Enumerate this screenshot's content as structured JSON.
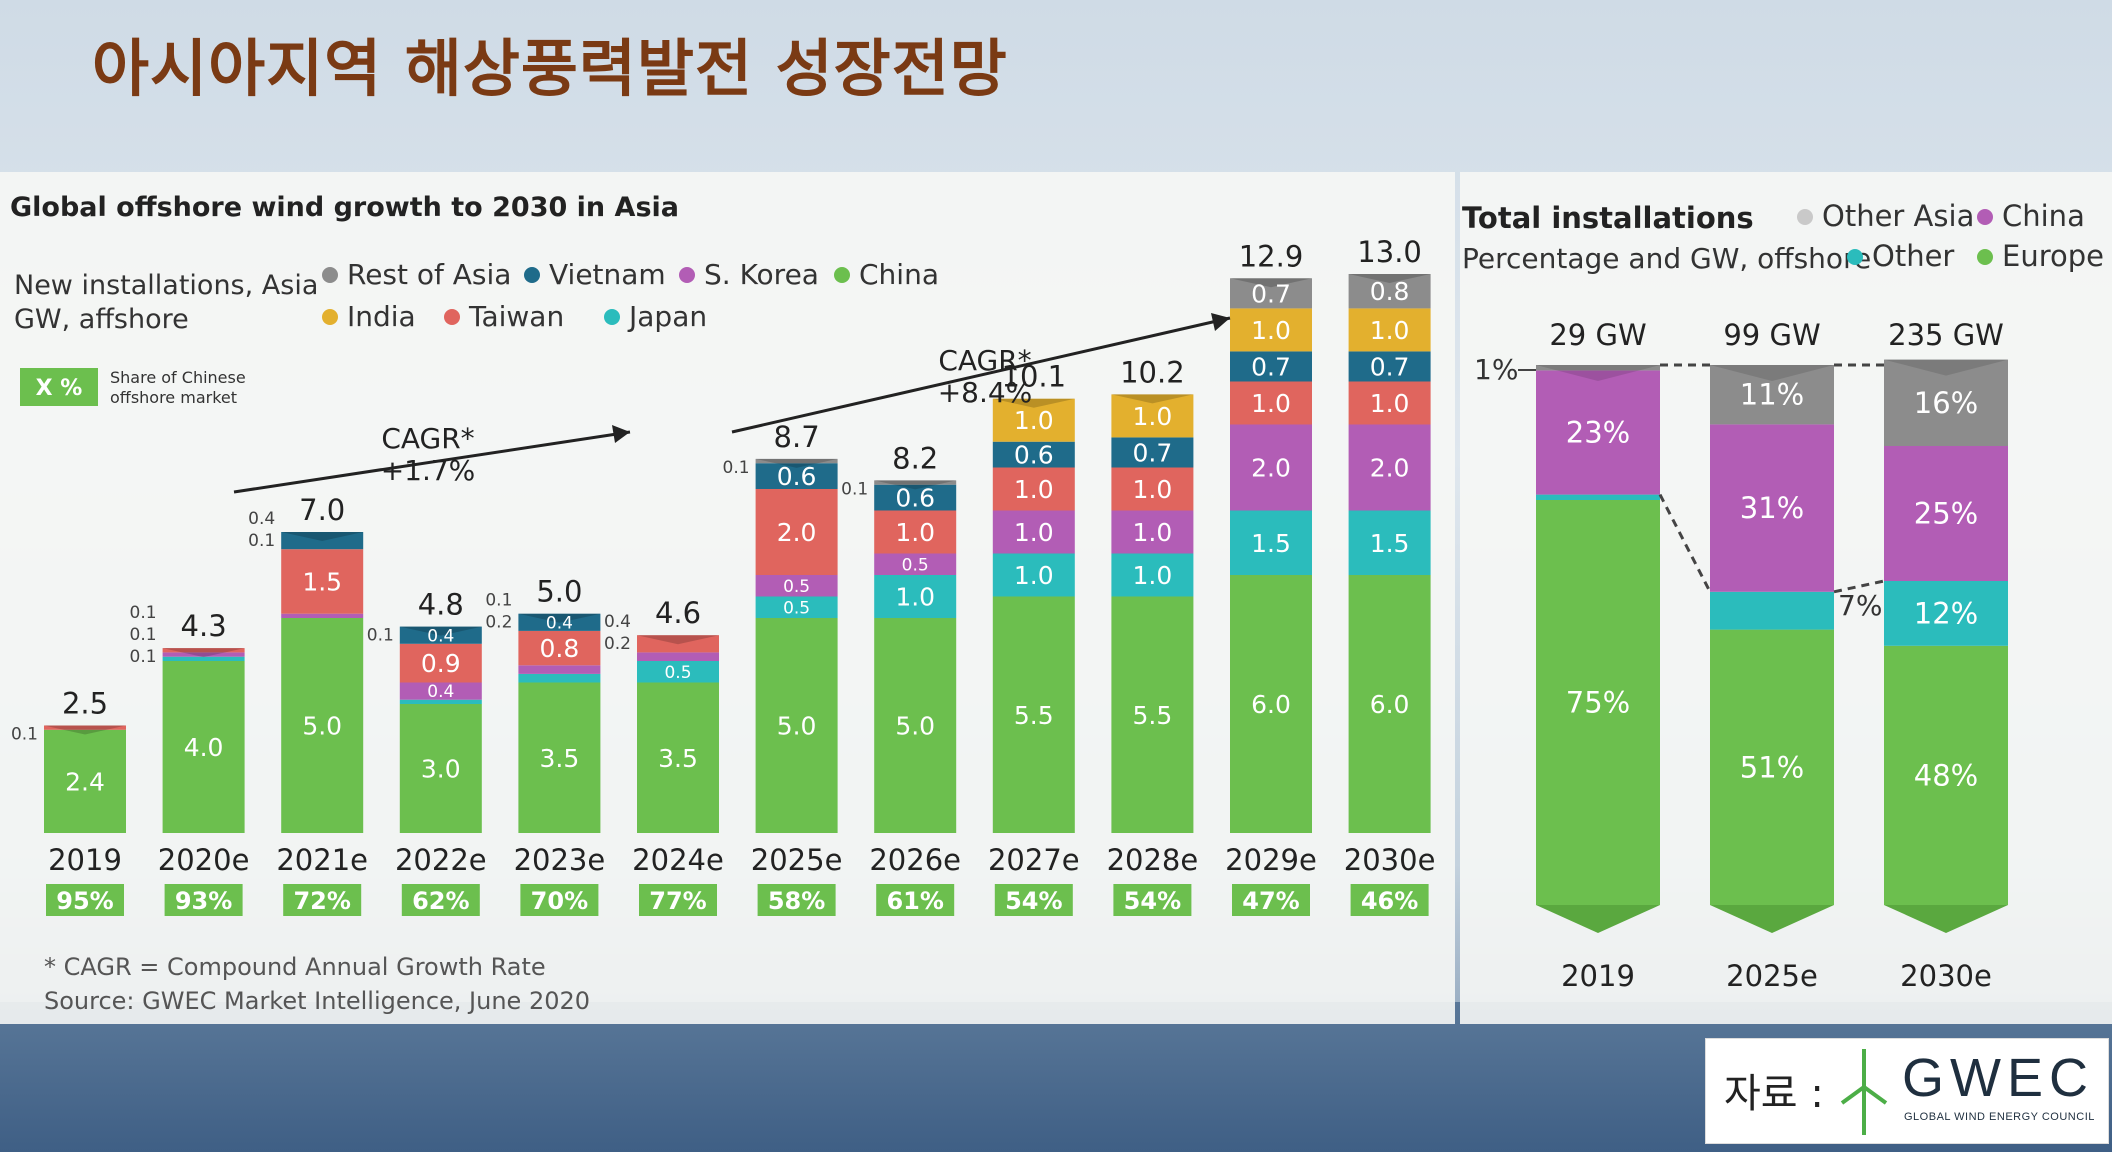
{
  "page": {
    "title": "아시아지역 해상풍력발전 성장전망",
    "source_label": "자료 :",
    "logo_name": "GWEC",
    "logo_subtitle": "GLOBAL WIND ENERGY COUNCIL"
  },
  "chart_data": [
    {
      "type": "bar",
      "stacked": true,
      "title": "Global offshore wind growth to 2030 in Asia",
      "subtitle_lines": [
        "New installations, Asia",
        "GW, affshore"
      ],
      "share_key": {
        "box": "X %",
        "lines": [
          "Share of Chinese",
          "offshore market"
        ]
      },
      "categories": [
        "2019",
        "2020e",
        "2021e",
        "2022e",
        "2023e",
        "2024e",
        "2025e",
        "2026e",
        "2027e",
        "2028e",
        "2029e",
        "2030e"
      ],
      "legend": [
        {
          "name": "Rest of Asia",
          "color": "#8c8c8c"
        },
        {
          "name": "Vietnam",
          "color": "#1f6b8a"
        },
        {
          "name": "S. Korea",
          "color": "#b25db5"
        },
        {
          "name": "China",
          "color": "#6cbf4e"
        },
        {
          "name": "India",
          "color": "#e3b02e"
        },
        {
          "name": "Taiwan",
          "color": "#e0655e"
        },
        {
          "name": "Japan",
          "color": "#2bbcbc"
        }
      ],
      "series": [
        {
          "name": "China",
          "color": "#6cbf4e",
          "values": [
            2.4,
            4.0,
            5.0,
            3.0,
            3.5,
            3.5,
            5.0,
            5.0,
            5.5,
            5.5,
            6.0,
            6.0
          ]
        },
        {
          "name": "Japan",
          "color": "#2bbcbc",
          "values": [
            0,
            0.1,
            0,
            0.1,
            0.2,
            0.5,
            0.5,
            1.0,
            1.0,
            1.0,
            1.5,
            1.5
          ]
        },
        {
          "name": "S. Korea",
          "color": "#b25db5",
          "values": [
            0,
            0.1,
            0.1,
            0.4,
            0.2,
            0.2,
            0.5,
            0.5,
            1.0,
            1.0,
            2.0,
            2.0
          ]
        },
        {
          "name": "Taiwan",
          "color": "#e0655e",
          "values": [
            0.1,
            0.1,
            1.5,
            0.9,
            0.8,
            0.4,
            2.0,
            1.0,
            1.0,
            1.0,
            1.0,
            1.0
          ]
        },
        {
          "name": "Vietnam",
          "color": "#1f6b8a",
          "values": [
            0,
            0,
            0.4,
            0.4,
            0.4,
            0,
            0.6,
            0.6,
            0.6,
            0.7,
            0.7,
            0.7
          ]
        },
        {
          "name": "India",
          "color": "#e3b02e",
          "values": [
            0,
            0,
            0,
            0,
            0,
            0,
            0,
            0,
            1.0,
            1.0,
            1.0,
            1.0
          ]
        },
        {
          "name": "Rest of Asia",
          "color": "#8c8c8c",
          "values": [
            0,
            0,
            0,
            0,
            0,
            0,
            0.1,
            0.1,
            0,
            0,
            0.7,
            0.8
          ]
        }
      ],
      "labels": [
        {
          "cat": 0,
          "series": "China",
          "text": "2.4"
        },
        {
          "cat": 1,
          "series": "China",
          "text": "4.0"
        },
        {
          "cat": 2,
          "series": "China",
          "text": "5.0"
        },
        {
          "cat": 2,
          "series": "Taiwan",
          "text": "1.5"
        },
        {
          "cat": 3,
          "series": "China",
          "text": "3.0"
        },
        {
          "cat": 3,
          "series": "S. Korea",
          "text": "0.4"
        },
        {
          "cat": 3,
          "series": "Taiwan",
          "text": "0.9"
        },
        {
          "cat": 3,
          "series": "Vietnam",
          "text": "0.4"
        },
        {
          "cat": 4,
          "series": "China",
          "text": "3.5"
        },
        {
          "cat": 4,
          "series": "Taiwan",
          "text": "0.8"
        },
        {
          "cat": 4,
          "series": "Vietnam",
          "text": "0.4"
        },
        {
          "cat": 5,
          "series": "China",
          "text": "3.5"
        },
        {
          "cat": 5,
          "series": "Japan",
          "text": "0.5"
        },
        {
          "cat": 6,
          "series": "China",
          "text": "5.0"
        },
        {
          "cat": 6,
          "series": "Japan",
          "text": "0.5"
        },
        {
          "cat": 6,
          "series": "S. Korea",
          "text": "0.5"
        },
        {
          "cat": 6,
          "series": "Taiwan",
          "text": "2.0"
        },
        {
          "cat": 6,
          "series": "Vietnam",
          "text": "0.6"
        },
        {
          "cat": 7,
          "series": "China",
          "text": "5.0"
        },
        {
          "cat": 7,
          "series": "Japan",
          "text": "1.0"
        },
        {
          "cat": 7,
          "series": "S. Korea",
          "text": "0.5"
        },
        {
          "cat": 7,
          "series": "Taiwan",
          "text": "1.0"
        },
        {
          "cat": 7,
          "series": "Vietnam",
          "text": "0.6"
        },
        {
          "cat": 8,
          "series": "China",
          "text": "5.5"
        },
        {
          "cat": 8,
          "series": "Japan",
          "text": "1.0"
        },
        {
          "cat": 8,
          "series": "S. Korea",
          "text": "1.0"
        },
        {
          "cat": 8,
          "series": "Taiwan",
          "text": "1.0"
        },
        {
          "cat": 8,
          "series": "Vietnam",
          "text": "0.6"
        },
        {
          "cat": 8,
          "series": "India",
          "text": "1.0"
        },
        {
          "cat": 9,
          "series": "China",
          "text": "5.5"
        },
        {
          "cat": 9,
          "series": "Japan",
          "text": "1.0"
        },
        {
          "cat": 9,
          "series": "S. Korea",
          "text": "1.0"
        },
        {
          "cat": 9,
          "series": "Taiwan",
          "text": "1.0"
        },
        {
          "cat": 9,
          "series": "Vietnam",
          "text": "0.7"
        },
        {
          "cat": 9,
          "series": "India",
          "text": "1.0"
        },
        {
          "cat": 10,
          "series": "China",
          "text": "6.0"
        },
        {
          "cat": 10,
          "series": "Japan",
          "text": "1.5"
        },
        {
          "cat": 10,
          "series": "S. Korea",
          "text": "2.0"
        },
        {
          "cat": 10,
          "series": "Taiwan",
          "text": "1.0"
        },
        {
          "cat": 10,
          "series": "Vietnam",
          "text": "0.7"
        },
        {
          "cat": 10,
          "series": "India",
          "text": "1.0"
        },
        {
          "cat": 10,
          "series": "Rest of Asia",
          "text": "0.7"
        },
        {
          "cat": 11,
          "series": "China",
          "text": "6.0"
        },
        {
          "cat": 11,
          "series": "Japan",
          "text": "1.5"
        },
        {
          "cat": 11,
          "series": "S. Korea",
          "text": "2.0"
        },
        {
          "cat": 11,
          "series": "Taiwan",
          "text": "1.0"
        },
        {
          "cat": 11,
          "series": "Vietnam",
          "text": "0.7"
        },
        {
          "cat": 11,
          "series": "India",
          "text": "1.0"
        },
        {
          "cat": 11,
          "series": "Rest of Asia",
          "text": "0.8"
        }
      ],
      "side_labels": [
        {
          "cat": 0,
          "lines": [
            "0.1"
          ]
        },
        {
          "cat": 1,
          "lines": [
            "0.1",
            "0.1",
            "0.1"
          ]
        },
        {
          "cat": 2,
          "lines": [
            "0.4",
            "0.1"
          ]
        },
        {
          "cat": 3,
          "lines": [
            "0.1"
          ]
        },
        {
          "cat": 4,
          "lines": [
            "0.1",
            "0.2"
          ]
        },
        {
          "cat": 5,
          "lines": [
            "0.4",
            "0.2"
          ]
        },
        {
          "cat": 6,
          "lines": [
            "0.1"
          ]
        },
        {
          "cat": 7,
          "lines": [
            "0.1"
          ]
        }
      ],
      "totals": [
        "2.5",
        "4.3",
        "7.0",
        "4.8",
        "5.0",
        "4.6",
        "8.7",
        "8.2",
        "10.1",
        "10.2",
        "12.9",
        "13.0"
      ],
      "china_share": [
        "95%",
        "93%",
        "72%",
        "62%",
        "70%",
        "77%",
        "58%",
        "61%",
        "54%",
        "54%",
        "47%",
        "46%"
      ],
      "annotations": [
        {
          "lines": [
            "CAGR*",
            "+1.7%"
          ]
        },
        {
          "lines": [
            "CAGR*",
            "+8.4%"
          ]
        }
      ],
      "ylim": [
        0,
        14
      ],
      "footnotes": [
        "* CAGR = Compound Annual Growth Rate",
        "Source: GWEC Market Intelligence, June 2020"
      ]
    },
    {
      "type": "bar",
      "stacked": true,
      "percent": true,
      "title": "Total installations",
      "subtitle": "Percentage and GW, offshore",
      "categories": [
        "2019",
        "2025e",
        "2030e"
      ],
      "totals": [
        "29 GW",
        "99 GW",
        "235 GW"
      ],
      "legend": [
        {
          "name": "Other Asia",
          "color": "#c9c9c9"
        },
        {
          "name": "China",
          "color": "#b25db5"
        },
        {
          "name": "Other",
          "color": "#2bbcbc"
        },
        {
          "name": "Europe",
          "color": "#6cbf4e"
        }
      ],
      "series": [
        {
          "name": "Europe",
          "color": "#6cbf4e",
          "values": [
            75,
            51,
            48
          ],
          "labels": [
            "75%",
            "51%",
            "48%"
          ]
        },
        {
          "name": "Other",
          "color": "#2bbcbc",
          "values": [
            1,
            7,
            12
          ],
          "labels": [
            "",
            "",
            "12%"
          ]
        },
        {
          "name": "China",
          "color": "#b25db5",
          "values": [
            23,
            31,
            25
          ],
          "labels": [
            "23%",
            "31%",
            "25%"
          ]
        },
        {
          "name": "Other Asia",
          "color": "#8c8c8c",
          "values": [
            1,
            11,
            16
          ],
          "labels": [
            "",
            "11%",
            "16%"
          ]
        }
      ],
      "outside_labels": [
        "1%",
        "7%"
      ]
    }
  ]
}
